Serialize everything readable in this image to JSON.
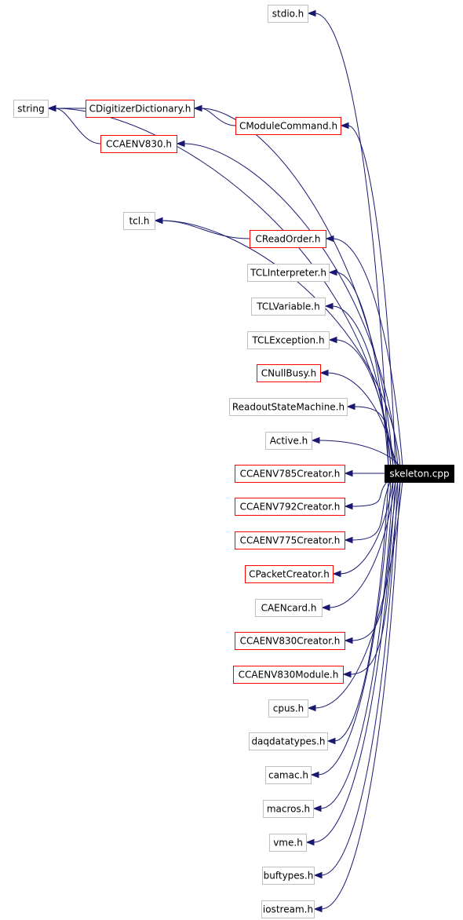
{
  "diagram": {
    "root": "skeleton.cpp",
    "colors": {
      "edge": "#191970",
      "documented_border": "#ff0000",
      "undocumented_border": "#bfbfbf",
      "root_fill": "#000000",
      "root_text": "#ffffff"
    },
    "nodes": {
      "stdio": {
        "label": "stdio.h",
        "documented": false
      },
      "string": {
        "label": "string",
        "documented": false
      },
      "cdigitizer": {
        "label": "CDigitizerDictionary.h",
        "documented": true
      },
      "cmodulecmd": {
        "label": "CModuleCommand.h",
        "documented": true
      },
      "ccaenv830": {
        "label": "CCAENV830.h",
        "documented": true
      },
      "tcl": {
        "label": "tcl.h",
        "documented": false
      },
      "creadorder": {
        "label": "CReadOrder.h",
        "documented": true
      },
      "tclinterp": {
        "label": "TCLInterpreter.h",
        "documented": false
      },
      "tclvariable": {
        "label": "TCLVariable.h",
        "documented": false
      },
      "tclexception": {
        "label": "TCLException.h",
        "documented": false
      },
      "cnullbusy": {
        "label": "CNullBusy.h",
        "documented": true
      },
      "readoutsm": {
        "label": "ReadoutStateMachine.h",
        "documented": false
      },
      "active": {
        "label": "Active.h",
        "documented": false
      },
      "v785creator": {
        "label": "CCAENV785Creator.h",
        "documented": true
      },
      "v792creator": {
        "label": "CCAENV792Creator.h",
        "documented": true
      },
      "v775creator": {
        "label": "CCAENV775Creator.h",
        "documented": true
      },
      "cpacketcreator": {
        "label": "CPacketCreator.h",
        "documented": true
      },
      "caencard": {
        "label": "CAENcard.h",
        "documented": false
      },
      "v830creator": {
        "label": "CCAENV830Creator.h",
        "documented": true
      },
      "v830module": {
        "label": "CCAENV830Module.h",
        "documented": true
      },
      "cpus": {
        "label": "cpus.h",
        "documented": false
      },
      "daqdatatypes": {
        "label": "daqdatatypes.h",
        "documented": false
      },
      "camac": {
        "label": "camac.h",
        "documented": false
      },
      "macros": {
        "label": "macros.h",
        "documented": false
      },
      "vme": {
        "label": "vme.h",
        "documented": false
      },
      "buftypes": {
        "label": "buftypes.h",
        "documented": false
      },
      "iostream": {
        "label": "iostream.h",
        "documented": false
      },
      "skeleton": {
        "label": "skeleton.cpp",
        "documented": true,
        "is_root": true
      }
    },
    "edges": [
      [
        "skeleton",
        "stdio"
      ],
      [
        "skeleton",
        "string"
      ],
      [
        "skeleton",
        "cdigitizer"
      ],
      [
        "skeleton",
        "cmodulecmd"
      ],
      [
        "skeleton",
        "ccaenv830"
      ],
      [
        "skeleton",
        "tcl"
      ],
      [
        "skeleton",
        "creadorder"
      ],
      [
        "skeleton",
        "tclinterp"
      ],
      [
        "skeleton",
        "tclvariable"
      ],
      [
        "skeleton",
        "tclexception"
      ],
      [
        "skeleton",
        "cnullbusy"
      ],
      [
        "skeleton",
        "readoutsm"
      ],
      [
        "skeleton",
        "active"
      ],
      [
        "skeleton",
        "v785creator"
      ],
      [
        "skeleton",
        "v792creator"
      ],
      [
        "skeleton",
        "v775creator"
      ],
      [
        "skeleton",
        "cpacketcreator"
      ],
      [
        "skeleton",
        "caencard"
      ],
      [
        "skeleton",
        "v830creator"
      ],
      [
        "skeleton",
        "v830module"
      ],
      [
        "skeleton",
        "cpus"
      ],
      [
        "skeleton",
        "daqdatatypes"
      ],
      [
        "skeleton",
        "camac"
      ],
      [
        "skeleton",
        "macros"
      ],
      [
        "skeleton",
        "vme"
      ],
      [
        "skeleton",
        "buftypes"
      ],
      [
        "skeleton",
        "iostream"
      ],
      [
        "cdigitizer",
        "string"
      ],
      [
        "cmodulecmd",
        "cdigitizer"
      ],
      [
        "ccaenv830",
        "string"
      ],
      [
        "creadorder",
        "tcl"
      ]
    ]
  }
}
